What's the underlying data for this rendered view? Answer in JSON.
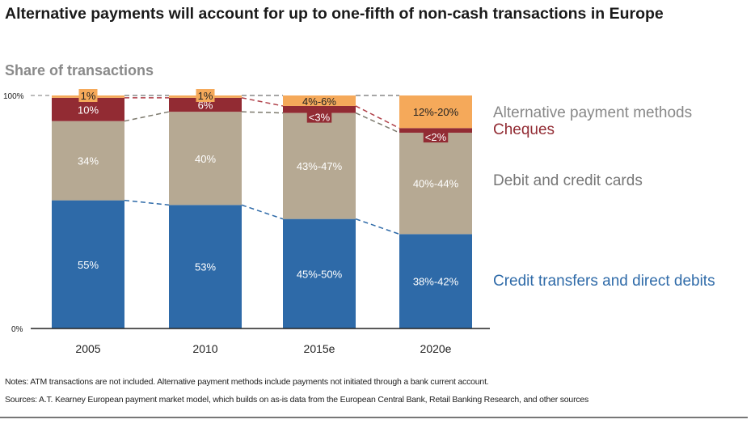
{
  "title": "Alternative payments will account for up to one-fifth of non-cash transactions in Europe",
  "subtitle": "Share of transactions",
  "notes": "Notes: ATM transactions are not included. Alternative payment methods include payments not initiated through a bank current account.",
  "sources": "Sources: A.T. Kearney European payment market model, which builds on as-is data from the European Central Bank, Retail Banking Research, and other sources",
  "chart_data": {
    "type": "bar",
    "stacked": true,
    "categories": [
      "2005",
      "2010",
      "2015e",
      "2020e"
    ],
    "ylim": [
      0,
      100
    ],
    "yticks": [
      "0%",
      "100%"
    ],
    "legend_placement": "right",
    "series": [
      {
        "name": "Credit transfers and direct debits",
        "color": "#2e6aa8",
        "values": [
          55,
          53,
          47,
          40.5
        ],
        "labels": [
          "55%",
          "53%",
          "45%-50%",
          "38%-42%"
        ]
      },
      {
        "name": "Debit and credit cards",
        "color": "#b6a993",
        "values": [
          34,
          40,
          45.5,
          43.5
        ],
        "labels": [
          "34%",
          "40%",
          "43%-47%",
          "40%-44%"
        ]
      },
      {
        "name": "Cheques",
        "color": "#922b33",
        "values": [
          10,
          6,
          3,
          2
        ],
        "labels": [
          "10%",
          "6%",
          "<3%",
          "<2%"
        ]
      },
      {
        "name": "Alternative payment methods",
        "color": "#f5a95a",
        "values": [
          1,
          1,
          4.5,
          14
        ],
        "labels": [
          "1%",
          "1%",
          "4%-6%",
          "12%-20%"
        ]
      }
    ]
  }
}
